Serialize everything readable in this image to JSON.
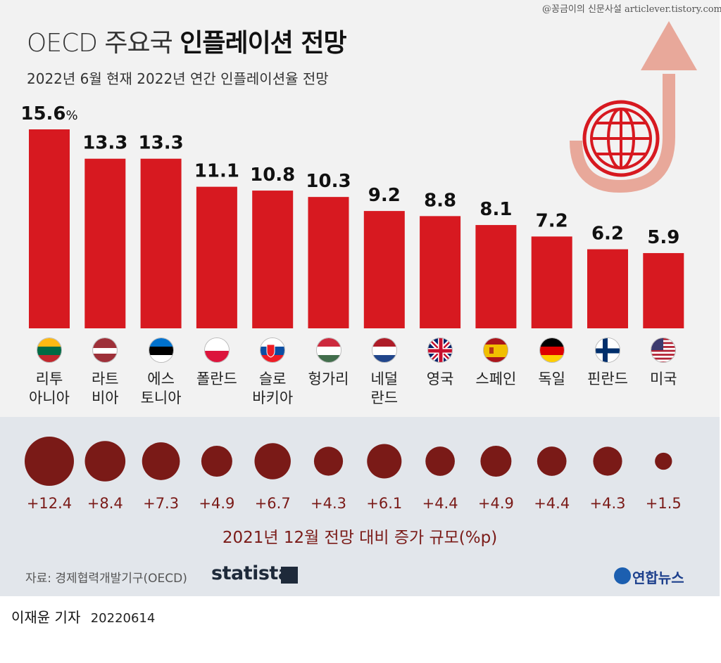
{
  "header": {
    "title_light": "OECD 주요국",
    "title_bold": "인플레이션 전망",
    "subtitle": "2022년 6월 현재 2022년 연간 인플레이션율 전망",
    "credit": "@꽁금이의 신문사설 articlever.tistory.com"
  },
  "colors": {
    "bar": "#d71920",
    "bubble": "#7a1a17",
    "bubble_label": "#7a1a17",
    "arrow": "#e8a89a",
    "globe": "#d71920"
  },
  "chart_data": {
    "type": "bar",
    "title": "OECD 주요국 인플레이션 전망",
    "subtitle": "2022년 6월 현재 2022년 연간 인플레이션율 전망",
    "unit": "%",
    "ylim": [
      0,
      16
    ],
    "categories": [
      "리투\n아니아",
      "라트\n비아",
      "에스\n토니아",
      "폴란드",
      "슬로\n바키아",
      "헝가리",
      "네덜\n란드",
      "영국",
      "스페인",
      "독일",
      "핀란드",
      "미국"
    ],
    "values": [
      15.6,
      13.3,
      13.3,
      11.1,
      10.8,
      10.3,
      9.2,
      8.8,
      8.1,
      7.2,
      6.2,
      5.9
    ],
    "value_labels": [
      "15.6",
      "13.3",
      "13.3",
      "11.1",
      "10.8",
      "10.3",
      "9.2",
      "8.8",
      "8.1",
      "7.2",
      "6.2",
      "5.9"
    ],
    "change_series": {
      "name": "2021년 12월 전망 대비 증가 규모(%p)",
      "values": [
        12.4,
        8.4,
        7.3,
        4.9,
        6.7,
        4.3,
        6.1,
        4.4,
        4.9,
        4.4,
        4.3,
        1.5
      ],
      "labels": [
        "+12.4",
        "+8.4",
        "+7.3",
        "+4.9",
        "+6.7",
        "+4.3",
        "+6.1",
        "+4.4",
        "+4.9",
        "+4.4",
        "+4.3",
        "+1.5"
      ]
    },
    "flags": [
      "lithuania",
      "latvia",
      "estonia",
      "poland",
      "slovakia",
      "hungary",
      "netherlands",
      "uk",
      "spain",
      "germany",
      "finland",
      "usa"
    ]
  },
  "footer": {
    "source": "자료: 경제협력개발기구(OECD)",
    "statista": "statista",
    "yonhap": "연합뉴스",
    "reporter": "이재윤 기자",
    "date": "20220614"
  }
}
